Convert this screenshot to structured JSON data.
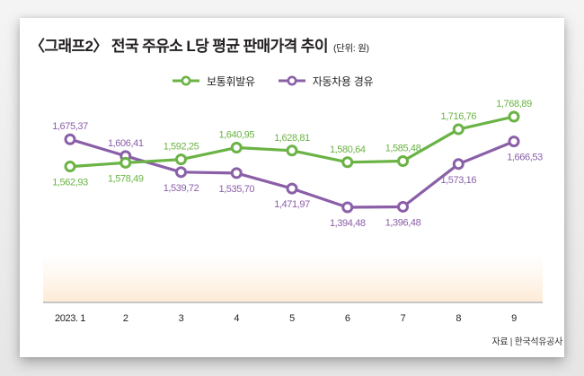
{
  "chart_data": {
    "type": "line",
    "title": "〈그래프2〉 전국 주유소 L당 평균 판매가격 추이",
    "unit_note": "(단위: 원)",
    "xlabel": "",
    "ylabel": "",
    "categories": [
      "2023. 1",
      "2",
      "3",
      "4",
      "5",
      "6",
      "7",
      "8",
      "9"
    ],
    "series": [
      {
        "name": "보통휘발유",
        "color": "#6ab344",
        "values": [
          1562.93,
          1578.49,
          1592.25,
          1640.95,
          1628.81,
          1580.64,
          1585.48,
          1716.76,
          1768.89
        ],
        "labels": [
          "1,562,93",
          "1,578,49",
          "1,592,25",
          "1,640,95",
          "1,628,81",
          "1,580,64",
          "1,585,48",
          "1,716,76",
          "1,768,89"
        ],
        "label_pos": [
          "below",
          "below",
          "above",
          "above",
          "above",
          "above",
          "above",
          "above",
          "above"
        ]
      },
      {
        "name": "자동차용 경유",
        "color": "#8a5fa8",
        "values": [
          1675.37,
          1606.41,
          1539.72,
          1535.7,
          1471.97,
          1394.48,
          1396.48,
          1573.16,
          1666.53
        ],
        "labels": [
          "1,675,37",
          "1,606,41",
          "1,539,72",
          "1,535,70",
          "1,471,97",
          "1,394,48",
          "1,396,48",
          "1,573,16",
          "1,666,53"
        ],
        "label_pos": [
          "above",
          "above",
          "below",
          "below",
          "below",
          "below",
          "below",
          "below",
          "below-right"
        ]
      }
    ],
    "ylim": [
      1394.48,
      1768.89
    ],
    "grid": false,
    "legend_position": "top-center",
    "source": "자료 | 한국석유공사"
  }
}
